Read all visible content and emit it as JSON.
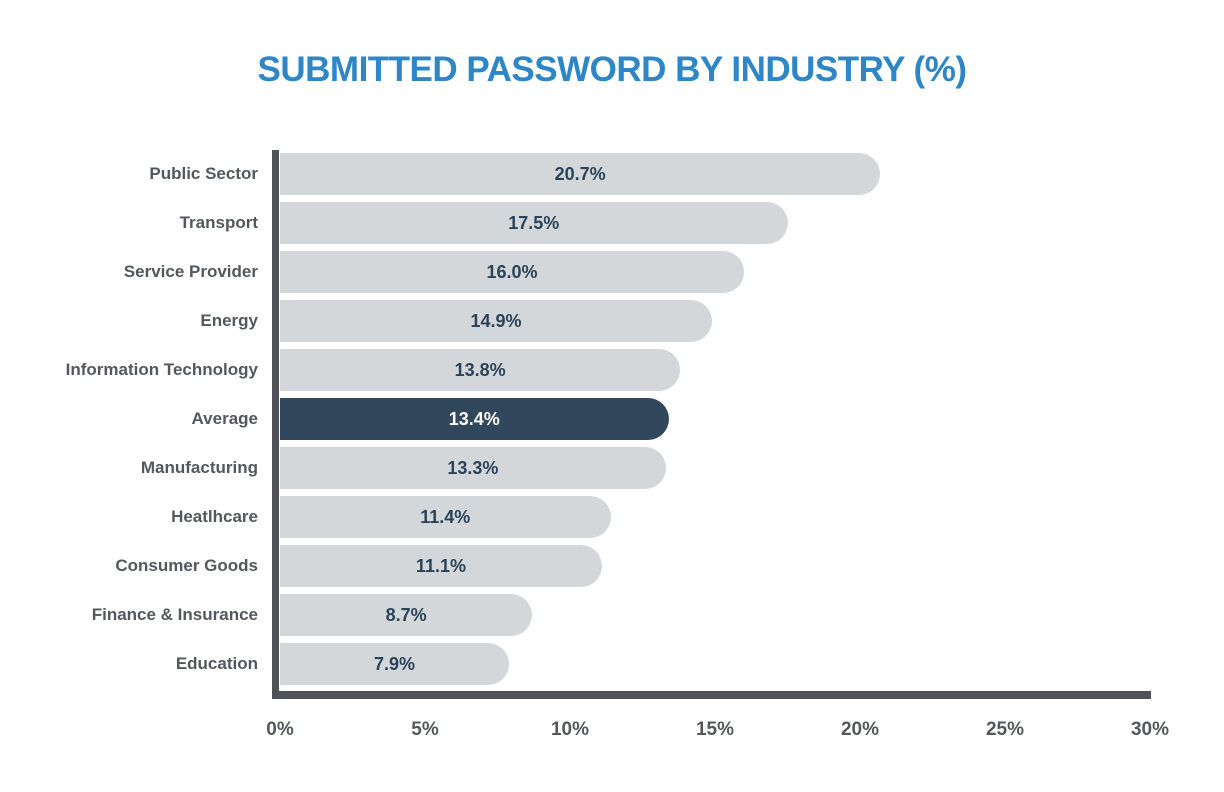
{
  "chart_data": {
    "type": "bar",
    "orientation": "horizontal",
    "title": "SUBMITTED PASSWORD BY INDUSTRY (%)",
    "categories": [
      "Public Sector",
      "Transport",
      "Service Provider",
      "Energy",
      "Information Technology",
      "Average",
      "Manufacturing",
      "Heatlhcare",
      "Consumer Goods",
      "Finance & Insurance",
      "Education"
    ],
    "values": [
      20.7,
      17.5,
      16.0,
      14.9,
      13.8,
      13.4,
      13.3,
      11.4,
      11.1,
      8.7,
      7.9
    ],
    "value_labels": [
      "20.7%",
      "17.5%",
      "16.0%",
      "14.9%",
      "13.8%",
      "13.4%",
      "13.3%",
      "11.4%",
      "11.1%",
      "8.7%",
      "7.9%"
    ],
    "highlight_category": "Average",
    "highlight_index": 5,
    "xlabel": "",
    "ylabel": "",
    "xlim": [
      0,
      30
    ],
    "x_ticks": [
      "0%",
      "5%",
      "10%",
      "15%",
      "20%",
      "25%",
      "30%"
    ],
    "x_tick_values": [
      0,
      5,
      10,
      15,
      20,
      25,
      30
    ],
    "grid": false,
    "legend": false,
    "colors": {
      "title": "#2E86C6",
      "bar_default": "#D4D7DA",
      "bar_highlight": "#31485C",
      "value_text": "#2A4359",
      "value_text_highlight": "#FFFFFF",
      "category_label": "#54585C",
      "axis_line": "#4F5357",
      "tick_label": "#54585C"
    }
  }
}
